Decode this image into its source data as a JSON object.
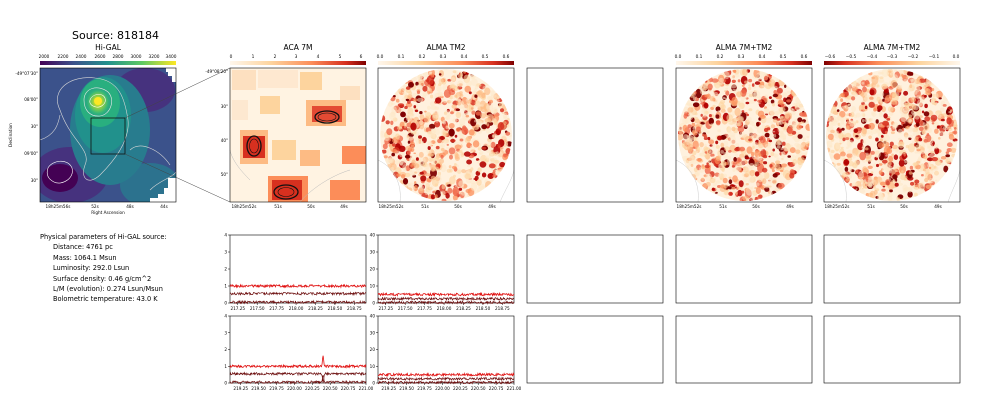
{
  "figure": {
    "source_title": "Source: 818184"
  },
  "panels": {
    "higal": {
      "title": "Hi-GAL",
      "colorbar_ticks": [
        "2000",
        "2200",
        "2400",
        "2600",
        "2800",
        "3000",
        "3200",
        "3400"
      ],
      "ra_ticks": [
        "18h25m56s",
        "52s",
        "48s",
        "44s"
      ],
      "dec_ticks": [
        "-49°07'30\"",
        "08'00\"",
        "30\"",
        "09'00\"",
        "30\""
      ],
      "xlabel": "Right Ascension",
      "ylabel": "Declination",
      "colormap": "viridis"
    },
    "aca7m": {
      "title": "ACA 7M",
      "colorbar_ticks": [
        "0",
        "1",
        "2",
        "3",
        "4",
        "5",
        "6"
      ],
      "ra_ticks": [
        "18h25m52s",
        "51s",
        "50s",
        "49s"
      ],
      "dec_ticks": [
        "-49°08'20\"",
        "30\"",
        "40\"",
        "50\""
      ],
      "colormap": "OrRd"
    },
    "almatm2": {
      "title": "ALMA TM2",
      "colorbar_ticks": [
        "0.0",
        "0.1",
        "0.2",
        "0.3",
        "0.4",
        "0.5",
        "0.6"
      ],
      "ra_ticks": [
        "18h25m52s",
        "51s",
        "50s",
        "49s"
      ]
    },
    "alma_combo_1": {
      "title": "ALMA 7M+TM2",
      "colorbar_ticks": [
        "0.0",
        "0.1",
        "0.2",
        "0.3",
        "0.4",
        "0.5",
        "0.6"
      ],
      "ra_ticks": [
        "18h25m52s",
        "51s",
        "50s",
        "49s"
      ]
    },
    "alma_combo_2": {
      "title": "ALMA 7M+TM2",
      "colorbar_ticks": [
        "−0.6",
        "−0.5",
        "−0.4",
        "−0.3",
        "−0.2",
        "−0.1",
        "0.0"
      ],
      "ra_ticks": [
        "18h25m52s",
        "51s",
        "50s",
        "49s"
      ]
    }
  },
  "parameters": {
    "heading": "Physical parameters of Hi-GAL source:",
    "lines": [
      "Distance: 4761 pc",
      "Mass: 1064.1 Msun",
      "Luminosity: 292.0 Lsun",
      "Surface density: 0.46 g/cm^2",
      "L/M (evolution): 0.274 Lsun/Msun",
      "Bolometric temperature: 43.0 K"
    ]
  },
  "colors": {
    "spectrum_bright": "#e01010",
    "spectrum_dark": "#6a0a0a",
    "contour": "#c0c0c0"
  },
  "chart_data": [
    {
      "type": "line",
      "panel": "spectrum-aca-upper",
      "ylim": [
        0,
        4
      ],
      "yticks": [
        "0",
        "1",
        "2",
        "3",
        "4"
      ],
      "xlim": [
        217.15,
        218.9
      ],
      "xticks": [
        "217.25",
        "217.50",
        "217.75",
        "218.00",
        "218.25",
        "218.50",
        "218.75"
      ],
      "series": [
        {
          "level": 1.0
        },
        {
          "level": 0.55
        },
        {
          "level": 0.05
        }
      ]
    },
    {
      "type": "line",
      "panel": "spectrum-tm2-upper",
      "ylim": [
        0,
        40
      ],
      "yticks": [
        "0",
        "10",
        "20",
        "30",
        "40"
      ],
      "xlim": [
        217.15,
        218.9
      ],
      "xticks": [
        "217.25",
        "217.50",
        "217.75",
        "218.00",
        "218.25",
        "218.50",
        "218.75"
      ],
      "series": [
        {
          "level": 5
        },
        {
          "level": 2.5
        },
        {
          "level": 0.3
        }
      ]
    },
    {
      "type": "line",
      "panel": "spectrum-aca-lower",
      "ylim": [
        0,
        4
      ],
      "yticks": [
        "0",
        "1",
        "2",
        "3",
        "4"
      ],
      "xlim": [
        219.1,
        221.0
      ],
      "xticks": [
        "219.25",
        "219.50",
        "219.75",
        "220.00",
        "220.25",
        "220.50",
        "220.75",
        "221.00"
      ],
      "series": [
        {
          "level": 1.0
        },
        {
          "level": 0.55
        },
        {
          "level": 0.05
        }
      ],
      "feature": {
        "x": 220.4,
        "peak": 1.6
      }
    },
    {
      "type": "line",
      "panel": "spectrum-tm2-lower",
      "ylim": [
        0,
        40
      ],
      "yticks": [
        "0",
        "10",
        "20",
        "30",
        "40"
      ],
      "xlim": [
        219.1,
        221.0
      ],
      "xticks": [
        "219.25",
        "219.50",
        "219.75",
        "220.00",
        "220.25",
        "220.50",
        "220.75",
        "221.00"
      ],
      "series": [
        {
          "level": 5
        },
        {
          "level": 2.5
        },
        {
          "level": 0.3
        }
      ]
    }
  ]
}
